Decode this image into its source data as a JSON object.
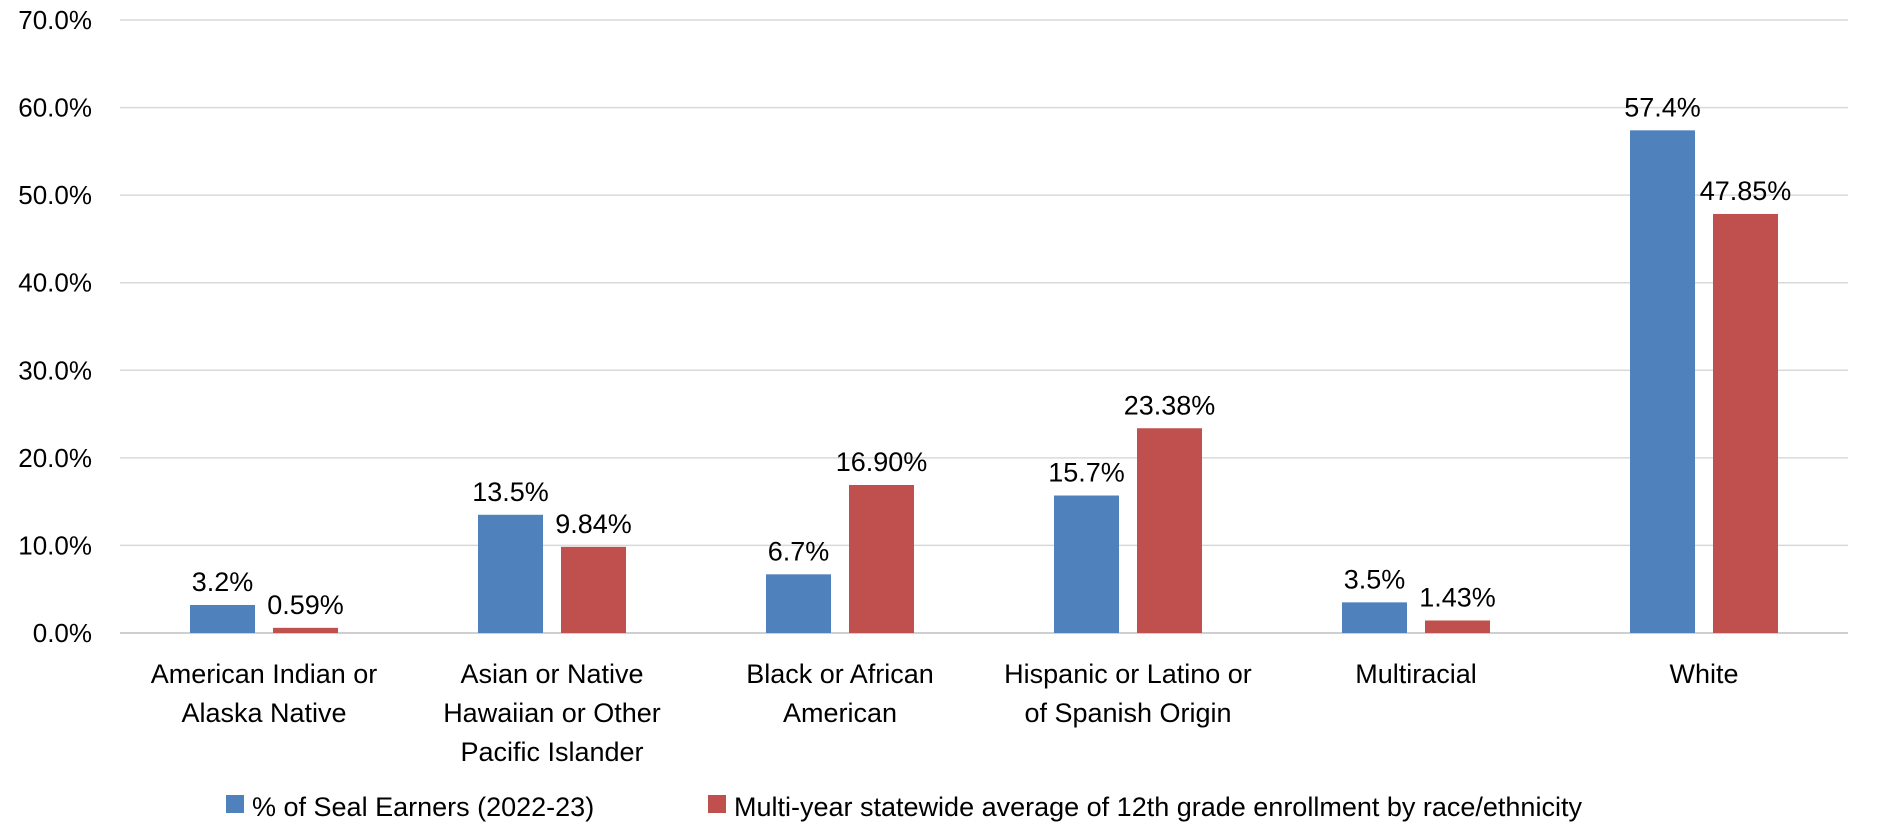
{
  "chart_data": {
    "type": "bar",
    "categories": [
      [
        "American Indian or",
        "Alaska Native"
      ],
      [
        "Asian or Native",
        "Hawaiian or Other",
        "Pacific Islander"
      ],
      [
        "Black or African",
        "American"
      ],
      [
        "Hispanic or Latino or",
        "of Spanish Origin"
      ],
      [
        "Multiracial"
      ],
      [
        "White"
      ]
    ],
    "series": [
      {
        "name": "% of Seal Earners (2022-23)",
        "color": "#4f81bd",
        "values": [
          3.2,
          13.5,
          6.7,
          15.7,
          3.5,
          57.4
        ],
        "labels": [
          "3.2%",
          "13.5%",
          "6.7%",
          "15.7%",
          "3.5%",
          "57.4%"
        ]
      },
      {
        "name": "Multi-year statewide average of 12th grade enrollment by race/ethnicity",
        "color": "#c0504d",
        "values": [
          0.59,
          9.84,
          16.9,
          23.38,
          1.43,
          47.85
        ],
        "labels": [
          "0.59%",
          "9.84%",
          "16.90%",
          "23.38%",
          "1.43%",
          "47.85%"
        ]
      }
    ],
    "ylim": [
      0,
      70
    ],
    "y_ticks": [
      0,
      10,
      20,
      30,
      40,
      50,
      60,
      70
    ],
    "y_tick_labels": [
      "0.0%",
      "10.0%",
      "20.0%",
      "30.0%",
      "40.0%",
      "50.0%",
      "60.0%",
      "70.0%"
    ],
    "grid": true,
    "legend_position": "bottom"
  }
}
